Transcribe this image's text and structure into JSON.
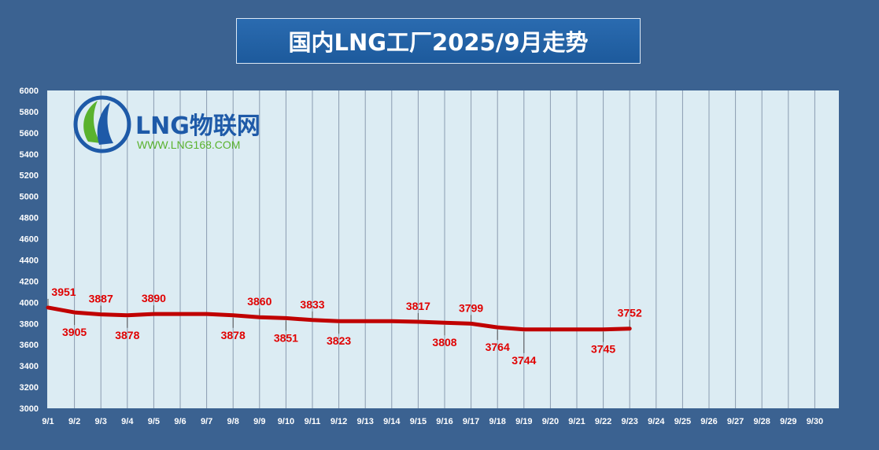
{
  "title": "国内LNG工厂2025/9月走势",
  "logo": {
    "name": "LNG物联网",
    "url": "WWW.LNG168.COM"
  },
  "colors": {
    "background": "#3b6291",
    "plot_area": "#dcecf3",
    "line": "#c00000",
    "label": "#e00000",
    "logo_blue": "#1e5aa8",
    "logo_green": "#5ab22e"
  },
  "chart_data": {
    "type": "line",
    "title": "国内LNG工厂2025/9月走势",
    "categories": [
      "9/1",
      "9/2",
      "9/3",
      "9/4",
      "9/5",
      "9/6",
      "9/7",
      "9/8",
      "9/9",
      "9/10",
      "9/11",
      "9/12",
      "9/13",
      "9/14",
      "9/15",
      "9/16",
      "9/17",
      "9/18",
      "9/19",
      "9/20",
      "9/21",
      "9/22",
      "9/23",
      "9/24",
      "9/25",
      "9/26",
      "9/27",
      "9/28",
      "9/29",
      "9/30"
    ],
    "values": [
      3951,
      3905,
      3887,
      3878,
      3890,
      3890,
      3890,
      3878,
      3860,
      3851,
      3833,
      3823,
      3823,
      3823,
      3817,
      3808,
      3799,
      3764,
      3744,
      3745,
      3745,
      3745,
      3752,
      null,
      null,
      null,
      null,
      null,
      null,
      null
    ],
    "data_labels": [
      {
        "index": 0,
        "text": "3951",
        "pos": "above"
      },
      {
        "index": 1,
        "text": "3905",
        "pos": "below"
      },
      {
        "index": 2,
        "text": "3887",
        "pos": "above"
      },
      {
        "index": 3,
        "text": "3878",
        "pos": "below"
      },
      {
        "index": 4,
        "text": "3890",
        "pos": "above"
      },
      {
        "index": 7,
        "text": "3878",
        "pos": "below"
      },
      {
        "index": 8,
        "text": "3860",
        "pos": "above"
      },
      {
        "index": 9,
        "text": "3851",
        "pos": "below"
      },
      {
        "index": 10,
        "text": "3833",
        "pos": "above"
      },
      {
        "index": 11,
        "text": "3823",
        "pos": "below"
      },
      {
        "index": 14,
        "text": "3817",
        "pos": "above"
      },
      {
        "index": 15,
        "text": "3808",
        "pos": "below"
      },
      {
        "index": 16,
        "text": "3799",
        "pos": "above"
      },
      {
        "index": 17,
        "text": "3764",
        "pos": "below"
      },
      {
        "index": 18,
        "text": "3744",
        "pos": "below2"
      },
      {
        "index": 21,
        "text": "3745",
        "pos": "below"
      },
      {
        "index": 22,
        "text": "3752",
        "pos": "above"
      }
    ],
    "ylim": [
      3000,
      6000
    ],
    "ytick_step": 200,
    "grid": "vertical",
    "legend": "none"
  }
}
